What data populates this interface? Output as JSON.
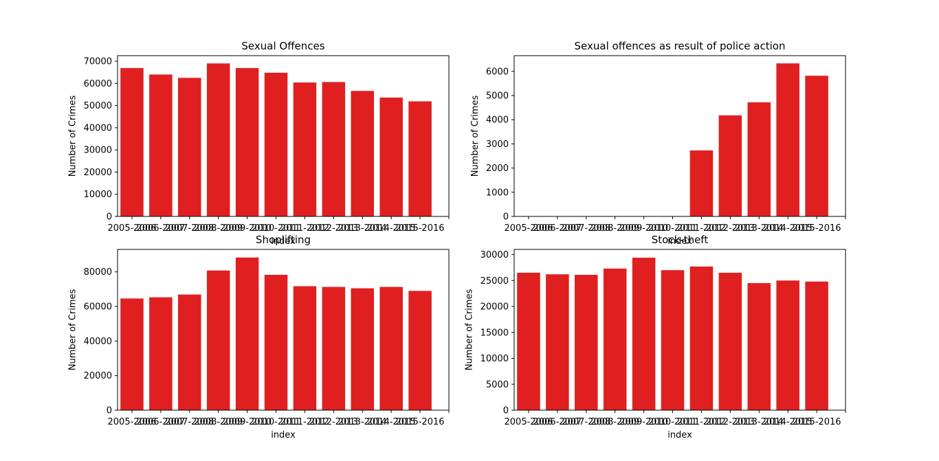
{
  "chart_data": [
    {
      "type": "bar",
      "title": "Sexual Offences",
      "xlabel": "index",
      "ylabel": "Number of Crimes",
      "categories": [
        "2005-2006",
        "2006-2007",
        "2007-2008",
        "2008-2009",
        "2009-2010",
        "2010-2011",
        "2011-2012",
        "2012-2013",
        "2013-2014",
        "2014-2015",
        "2015-2016"
      ],
      "values": [
        66900,
        64000,
        62500,
        69000,
        66900,
        64800,
        60400,
        60600,
        56600,
        53600,
        51900
      ],
      "ylim": [
        0,
        72500
      ],
      "yticks": [
        0,
        10000,
        20000,
        30000,
        40000,
        50000,
        60000,
        70000
      ],
      "color": "#e02020",
      "grid": false
    },
    {
      "type": "bar",
      "title": "Sexual offences as result of police action",
      "xlabel": "index",
      "ylabel": "Number of Crimes",
      "categories": [
        "2005-2006",
        "2006-2007",
        "2007-2008",
        "2008-2009",
        "2009-2010",
        "2010-2011",
        "2011-2012",
        "2012-2013",
        "2013-2014",
        "2014-2015",
        "2015-2016"
      ],
      "values": [
        0,
        0,
        0,
        0,
        0,
        0,
        2730,
        4180,
        4720,
        6330,
        5820
      ],
      "ylim": [
        0,
        6650
      ],
      "yticks": [
        0,
        1000,
        2000,
        3000,
        4000,
        5000,
        6000
      ],
      "color": "#e02020",
      "grid": false
    },
    {
      "type": "bar",
      "title": "Shoplifting",
      "xlabel": "index",
      "ylabel": "Number of Crimes",
      "categories": [
        "2005-2006",
        "2006-2007",
        "2007-2008",
        "2008-2009",
        "2009-2010",
        "2010-2011",
        "2011-2012",
        "2012-2013",
        "2013-2014",
        "2014-2015",
        "2015-2016"
      ],
      "values": [
        64600,
        65300,
        66900,
        80800,
        88300,
        78300,
        71700,
        71300,
        70500,
        71300,
        69000
      ],
      "ylim": [
        0,
        93000
      ],
      "yticks": [
        0,
        20000,
        40000,
        60000,
        80000
      ],
      "color": "#e02020",
      "grid": false
    },
    {
      "type": "bar",
      "title": "Stock-theft",
      "xlabel": "index",
      "ylabel": "Number of Crimes",
      "categories": [
        "2005-2006",
        "2006-2007",
        "2007-2008",
        "2008-2009",
        "2009-2010",
        "2010-2011",
        "2011-2012",
        "2012-2013",
        "2013-2014",
        "2014-2015",
        "2015-2016"
      ],
      "values": [
        26500,
        26200,
        26100,
        27300,
        29400,
        27000,
        27700,
        26500,
        24500,
        25000,
        24800
      ],
      "ylim": [
        0,
        31000
      ],
      "yticks": [
        0,
        5000,
        10000,
        15000,
        20000,
        25000,
        30000
      ],
      "color": "#e02020",
      "grid": false
    }
  ]
}
